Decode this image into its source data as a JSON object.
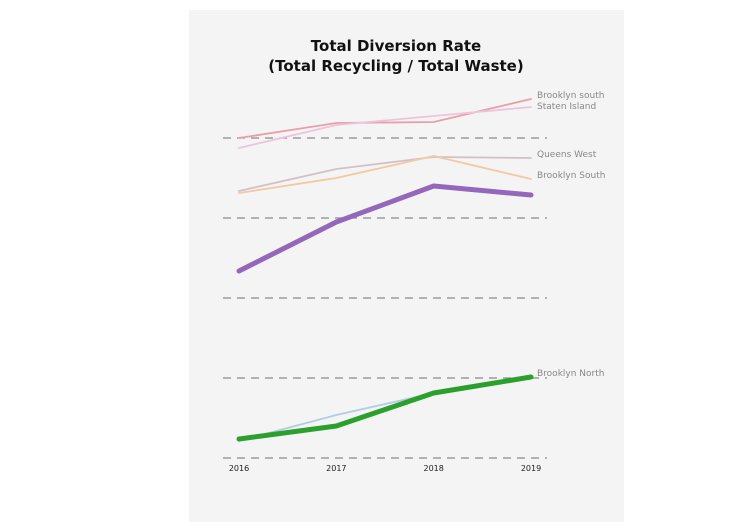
{
  "chart_data": {
    "type": "line",
    "title": "Total Diversion Rate",
    "subtitle": "(Total Recycling / Total Waste)",
    "xlabel": "",
    "ylabel": "",
    "x": [
      "2016",
      "2017",
      "2018",
      "2019"
    ],
    "ylim": [
      0,
      0.4
    ],
    "y_gridlines": [
      0,
      0.08,
      0.16,
      0.24,
      0.32
    ],
    "y_tick_labels_shown": false,
    "grid": "horizontal dashed",
    "legend": "direct labels at line ends",
    "series": [
      {
        "name": "Brooklyn south",
        "values": [
          0.32,
          0.335,
          0.336,
          0.359
        ],
        "color": "#e8a0a8",
        "emphasis": false
      },
      {
        "name": "Staten Island",
        "values": [
          0.31,
          0.333,
          0.342,
          0.351
        ],
        "color": "#ecc4dc",
        "emphasis": false
      },
      {
        "name": "Queens West",
        "values": [
          0.267,
          0.289,
          0.301,
          0.3
        ],
        "color": "#d2c0c8",
        "emphasis": false
      },
      {
        "name": "Brooklyn South",
        "values": [
          0.265,
          0.28,
          0.302,
          0.279
        ],
        "color": "#f4c8a0",
        "emphasis": false
      },
      {
        "name": "",
        "values": [
          0.187,
          0.236,
          0.272,
          0.263
        ],
        "color": "#9467bd",
        "emphasis": true
      },
      {
        "name": "",
        "values": [
          0.017,
          0.043,
          0.065,
          0.08
        ],
        "color": "#aecfe2",
        "emphasis": false
      },
      {
        "name": "Brooklyn North",
        "values": [
          0.019,
          0.032,
          0.065,
          0.081
        ],
        "color": "#2ca02c",
        "emphasis": true
      }
    ]
  }
}
